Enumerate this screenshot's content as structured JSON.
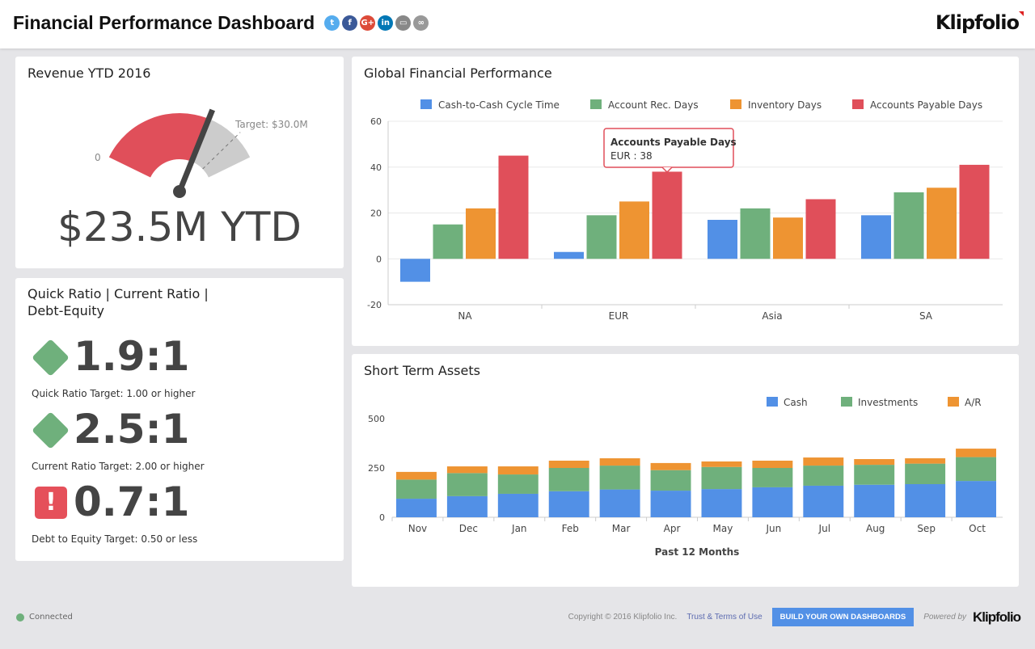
{
  "header": {
    "title": "Financial Performance Dashboard",
    "brand": "Klipfolio",
    "social": [
      {
        "name": "twitter",
        "glyph": "t",
        "color": "#55acee"
      },
      {
        "name": "facebook",
        "glyph": "f",
        "color": "#3b5998"
      },
      {
        "name": "google-plus",
        "glyph": "G+",
        "color": "#dd4b39"
      },
      {
        "name": "linkedin",
        "glyph": "in",
        "color": "#0077b5"
      },
      {
        "name": "embed",
        "glyph": "▭",
        "color": "#888"
      },
      {
        "name": "link",
        "glyph": "∞",
        "color": "#999"
      }
    ]
  },
  "revenue": {
    "title": "Revenue YTD 2016",
    "min_label": "0",
    "target_label": "Target: $30.0M",
    "value": 23.5,
    "target": 30,
    "min": 0,
    "max": 35,
    "display": "$23.5M YTD",
    "colors": {
      "fill": "#e04f5a",
      "rest": "#cccccc",
      "needle": "#444444"
    }
  },
  "ratios": {
    "title": "Quick Ratio | Current Ratio | Debt-Equity",
    "items": [
      {
        "value": "1.9:1",
        "label": "Quick Ratio Target: 1.00 or higher",
        "status": "good"
      },
      {
        "value": "2.5:1",
        "label": "Current Ratio Target: 2.00 or higher",
        "status": "good"
      },
      {
        "value": "0.7:1",
        "label": "Debt to Equity Target: 0.50 or less",
        "status": "alert",
        "glyph": "!"
      }
    ]
  },
  "chart_data": [
    {
      "type": "bar",
      "title": "Global Financial Performance",
      "categories": [
        "NA",
        "EUR",
        "Asia",
        "SA"
      ],
      "ylim": [
        -20,
        60
      ],
      "yticks": [
        -20,
        0,
        20,
        40,
        60
      ],
      "grid": true,
      "legend": "top",
      "series": [
        {
          "name": "Cash-to-Cash Cycle Time",
          "color": "#5290e6",
          "values": [
            -10,
            3,
            17,
            19
          ]
        },
        {
          "name": "Account Rec. Days",
          "color": "#6fb07c",
          "values": [
            15,
            19,
            22,
            29
          ]
        },
        {
          "name": "Inventory Days",
          "color": "#ee9432",
          "values": [
            22,
            25,
            18,
            31
          ]
        },
        {
          "name": "Accounts Payable Days",
          "color": "#e04f5a",
          "values": [
            45,
            38,
            26,
            41
          ]
        }
      ],
      "tooltip": {
        "title": "Accounts Payable Days",
        "text": "EUR : 38",
        "category": "EUR"
      }
    },
    {
      "type": "bar",
      "stacked": true,
      "title": "Short Term Assets",
      "xlabel": "Past 12 Months",
      "categories": [
        "Nov",
        "Dec",
        "Jan",
        "Feb",
        "Mar",
        "Apr",
        "May",
        "Jun",
        "Jul",
        "Aug",
        "Sep",
        "Oct"
      ],
      "ylim": [
        0,
        500
      ],
      "yticks": [
        0,
        250,
        500
      ],
      "legend": "top-right",
      "series": [
        {
          "name": "Cash",
          "color": "#5290e6",
          "values": [
            94,
            107,
            119,
            132,
            141,
            135,
            143,
            152,
            160,
            165,
            168,
            184
          ]
        },
        {
          "name": "Investments",
          "color": "#6fb07c",
          "values": [
            97,
            117,
            98,
            118,
            121,
            104,
            112,
            98,
            102,
            101,
            104,
            121
          ]
        },
        {
          "name": "A/R",
          "color": "#ee9432",
          "values": [
            39,
            34,
            41,
            37,
            37,
            36,
            28,
            37,
            41,
            29,
            27,
            43
          ]
        }
      ]
    }
  ],
  "footer": {
    "status": "Connected",
    "copyright": "Copyright © 2016 Klipfolio Inc.",
    "terms": "Trust & Terms of Use",
    "cta": "BUILD YOUR OWN DASHBOARDS",
    "powered": "Powered by",
    "brand": "Klipfolio"
  }
}
